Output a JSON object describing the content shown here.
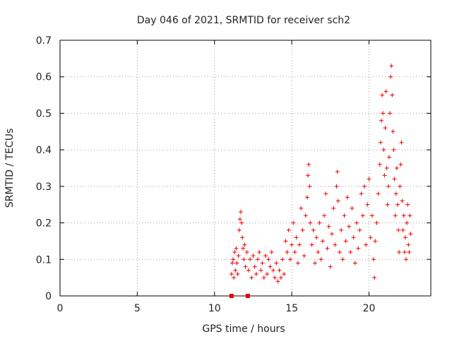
{
  "chart_data": {
    "type": "scatter",
    "title": "Day 046 of 2021, SRMTID for receiver sch2",
    "xlabel": "GPS time / hours",
    "ylabel": "SRMTID / TECUs",
    "xlim": [
      0,
      24
    ],
    "ylim": [
      0,
      0.7
    ],
    "xticks": [
      0,
      5,
      10,
      15,
      20
    ],
    "yticks": [
      0,
      0.1,
      0.2,
      0.3,
      0.4,
      0.5,
      0.6,
      0.7
    ],
    "xtick_labels": [
      "0",
      "5",
      "10",
      "15",
      "20"
    ],
    "ytick_labels": [
      "0",
      "0.1",
      "0.2",
      "0.3",
      "0.4",
      "0.5",
      "0.6",
      "0.7"
    ],
    "grid": true,
    "marker": "plus",
    "color": "#ee0000",
    "zero_markers": [
      {
        "x": 11.1,
        "y": 0
      },
      {
        "x": 12.15,
        "y": 0
      }
    ],
    "series": [
      {
        "name": "sch2",
        "points": [
          [
            11.1,
            0.06
          ],
          [
            11.15,
            0.09
          ],
          [
            11.2,
            0.1
          ],
          [
            11.25,
            0.05
          ],
          [
            11.3,
            0.12
          ],
          [
            11.35,
            0.07
          ],
          [
            11.4,
            0.13
          ],
          [
            11.45,
            0.09
          ],
          [
            11.5,
            0.06
          ],
          [
            11.55,
            0.11
          ],
          [
            11.6,
            0.18
          ],
          [
            11.65,
            0.21
          ],
          [
            11.7,
            0.23
          ],
          [
            11.75,
            0.2
          ],
          [
            11.8,
            0.16
          ],
          [
            11.85,
            0.13
          ],
          [
            11.9,
            0.1
          ],
          [
            11.95,
            0.14
          ],
          [
            12.0,
            0.08
          ],
          [
            12.1,
            0.12
          ],
          [
            12.2,
            0.07
          ],
          [
            12.3,
            0.1
          ],
          [
            12.4,
            0.05
          ],
          [
            12.5,
            0.11
          ],
          [
            12.6,
            0.08
          ],
          [
            12.7,
            0.06
          ],
          [
            12.8,
            0.1
          ],
          [
            12.9,
            0.12
          ],
          [
            13.0,
            0.07
          ],
          [
            13.1,
            0.09
          ],
          [
            13.2,
            0.05
          ],
          [
            13.3,
            0.11
          ],
          [
            13.4,
            0.06
          ],
          [
            13.5,
            0.1
          ],
          [
            13.6,
            0.08
          ],
          [
            13.7,
            0.12
          ],
          [
            13.8,
            0.07
          ],
          [
            13.9,
            0.05
          ],
          [
            14.0,
            0.09
          ],
          [
            14.1,
            0.04
          ],
          [
            14.2,
            0.07
          ],
          [
            14.3,
            0.05
          ],
          [
            14.4,
            0.1
          ],
          [
            14.5,
            0.06
          ],
          [
            14.6,
            0.15
          ],
          [
            14.7,
            0.12
          ],
          [
            14.8,
            0.18
          ],
          [
            14.9,
            0.1
          ],
          [
            15.0,
            0.14
          ],
          [
            15.1,
            0.2
          ],
          [
            15.2,
            0.12
          ],
          [
            15.3,
            0.16
          ],
          [
            15.4,
            0.09
          ],
          [
            15.5,
            0.14
          ],
          [
            15.6,
            0.24
          ],
          [
            15.7,
            0.18
          ],
          [
            15.8,
            0.11
          ],
          [
            15.9,
            0.22
          ],
          [
            16.0,
            0.27
          ],
          [
            16.05,
            0.33
          ],
          [
            16.1,
            0.36
          ],
          [
            16.15,
            0.3
          ],
          [
            16.2,
            0.2
          ],
          [
            16.3,
            0.14
          ],
          [
            16.4,
            0.18
          ],
          [
            16.5,
            0.09
          ],
          [
            16.6,
            0.16
          ],
          [
            16.7,
            0.12
          ],
          [
            16.8,
            0.2
          ],
          [
            16.9,
            0.1
          ],
          [
            17.0,
            0.15
          ],
          [
            17.1,
            0.22
          ],
          [
            17.2,
            0.28
          ],
          [
            17.3,
            0.13
          ],
          [
            17.4,
            0.19
          ],
          [
            17.5,
            0.08
          ],
          [
            17.6,
            0.17
          ],
          [
            17.7,
            0.24
          ],
          [
            17.8,
            0.14
          ],
          [
            17.9,
            0.3
          ],
          [
            17.95,
            0.34
          ],
          [
            18.0,
            0.26
          ],
          [
            18.1,
            0.12
          ],
          [
            18.2,
            0.18
          ],
          [
            18.3,
            0.1
          ],
          [
            18.4,
            0.22
          ],
          [
            18.5,
            0.15
          ],
          [
            18.6,
            0.27
          ],
          [
            18.7,
            0.19
          ],
          [
            18.8,
            0.12
          ],
          [
            18.9,
            0.24
          ],
          [
            19.0,
            0.16
          ],
          [
            19.1,
            0.09
          ],
          [
            19.2,
            0.2
          ],
          [
            19.3,
            0.13
          ],
          [
            19.4,
            0.18
          ],
          [
            19.5,
            0.28
          ],
          [
            19.6,
            0.22
          ],
          [
            19.7,
            0.3
          ],
          [
            19.8,
            0.14
          ],
          [
            19.9,
            0.25
          ],
          [
            20.0,
            0.32
          ],
          [
            20.1,
            0.16
          ],
          [
            20.2,
            0.22
          ],
          [
            20.3,
            0.1
          ],
          [
            20.35,
            0.05
          ],
          [
            20.4,
            0.15
          ],
          [
            20.5,
            0.2
          ],
          [
            20.6,
            0.28
          ],
          [
            20.7,
            0.36
          ],
          [
            20.75,
            0.42
          ],
          [
            20.8,
            0.48
          ],
          [
            20.85,
            0.55
          ],
          [
            20.9,
            0.5
          ],
          [
            20.95,
            0.4
          ],
          [
            21.0,
            0.33
          ],
          [
            21.05,
            0.46
          ],
          [
            21.1,
            0.56
          ],
          [
            21.15,
            0.35
          ],
          [
            21.2,
            0.25
          ],
          [
            21.25,
            0.3
          ],
          [
            21.3,
            0.38
          ],
          [
            21.35,
            0.5
          ],
          [
            21.4,
            0.6
          ],
          [
            21.45,
            0.63
          ],
          [
            21.5,
            0.55
          ],
          [
            21.55,
            0.45
          ],
          [
            21.6,
            0.4
          ],
          [
            21.65,
            0.32
          ],
          [
            21.7,
            0.22
          ],
          [
            21.75,
            0.28
          ],
          [
            21.8,
            0.35
          ],
          [
            21.85,
            0.25
          ],
          [
            21.9,
            0.18
          ],
          [
            21.95,
            0.12
          ],
          [
            22.0,
            0.3
          ],
          [
            22.05,
            0.36
          ],
          [
            22.1,
            0.42
          ],
          [
            22.15,
            0.26
          ],
          [
            22.2,
            0.18
          ],
          [
            22.25,
            0.22
          ],
          [
            22.3,
            0.12
          ],
          [
            22.35,
            0.16
          ],
          [
            22.4,
            0.1
          ],
          [
            22.45,
            0.2
          ],
          [
            22.5,
            0.25
          ],
          [
            22.55,
            0.14
          ],
          [
            22.6,
            0.12
          ],
          [
            22.65,
            0.22
          ],
          [
            22.7,
            0.17
          ]
        ]
      }
    ]
  }
}
